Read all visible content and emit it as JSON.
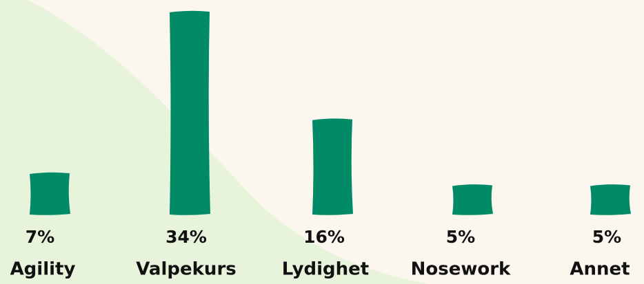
{
  "chart_data": {
    "type": "bar",
    "categories": [
      "Agility",
      "Valpekurs",
      "Lydighet",
      "Nosework",
      "Annet"
    ],
    "values": [
      7,
      34,
      16,
      5,
      5
    ],
    "value_labels": [
      "7%",
      "34%",
      "16%",
      "5%",
      "5%"
    ],
    "color": "#008a66"
  }
}
